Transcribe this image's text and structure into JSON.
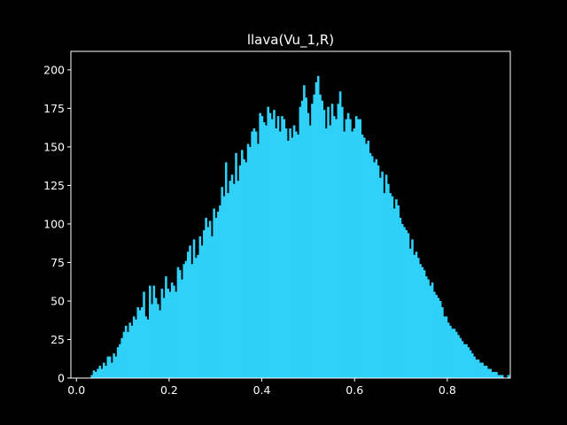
{
  "chart_data": {
    "type": "bar",
    "title": "llava(Vu_1,R)",
    "xlabel": "",
    "ylabel": "",
    "xlim": [
      -0.0119,
      0.9359
    ],
    "ylim": [
      0,
      212
    ],
    "x_ticks": [
      0.0,
      0.2,
      0.4,
      0.6,
      0.8
    ],
    "x_tick_labels": [
      "0.0",
      "0.2",
      "0.4",
      "0.6",
      "0.8"
    ],
    "y_ticks": [
      0,
      25,
      50,
      75,
      100,
      125,
      150,
      175,
      200
    ],
    "y_tick_labels": [
      "0",
      "25",
      "50",
      "75",
      "100",
      "125",
      "150",
      "175",
      "200"
    ],
    "bin_start": 0.031,
    "bin_width": 0.00432,
    "values": [
      2,
      5,
      4,
      6,
      8,
      6,
      10,
      8,
      14,
      14,
      10,
      16,
      14,
      20,
      22,
      26,
      30,
      34,
      30,
      36,
      34,
      40,
      38,
      46,
      44,
      46,
      56,
      40,
      38,
      60,
      48,
      60,
      52,
      48,
      44,
      58,
      52,
      66,
      58,
      56,
      62,
      60,
      56,
      72,
      70,
      64,
      74,
      76,
      82,
      86,
      74,
      90,
      78,
      80,
      92,
      86,
      96,
      104,
      98,
      102,
      92,
      110,
      104,
      108,
      112,
      124,
      118,
      140,
      120,
      128,
      132,
      126,
      146,
      128,
      138,
      148,
      142,
      140,
      152,
      150,
      160,
      162,
      160,
      152,
      172,
      170,
      166,
      164,
      176,
      172,
      168,
      174,
      162,
      170,
      160,
      170,
      168,
      162,
      154,
      162,
      156,
      164,
      160,
      158,
      176,
      180,
      190,
      182,
      172,
      164,
      178,
      184,
      192,
      196,
      184,
      180,
      174,
      162,
      176,
      164,
      178,
      170,
      168,
      178,
      186,
      176,
      160,
      168,
      172,
      168,
      160,
      162,
      170,
      168,
      168,
      158,
      156,
      152,
      154,
      146,
      144,
      140,
      142,
      138,
      130,
      134,
      120,
      132,
      126,
      120,
      118,
      110,
      116,
      112,
      104,
      100,
      98,
      96,
      94,
      84,
      90,
      80,
      82,
      78,
      74,
      72,
      70,
      66,
      64,
      60,
      62,
      56,
      54,
      52,
      50,
      46,
      40,
      40,
      36,
      34,
      32,
      32,
      30,
      28,
      26,
      24,
      22,
      22,
      20,
      18,
      16,
      14,
      12,
      12,
      10,
      10,
      8,
      8,
      6,
      6,
      4,
      4,
      4,
      2,
      2,
      2,
      0,
      0,
      2
    ],
    "color": "#2fd1f8"
  }
}
